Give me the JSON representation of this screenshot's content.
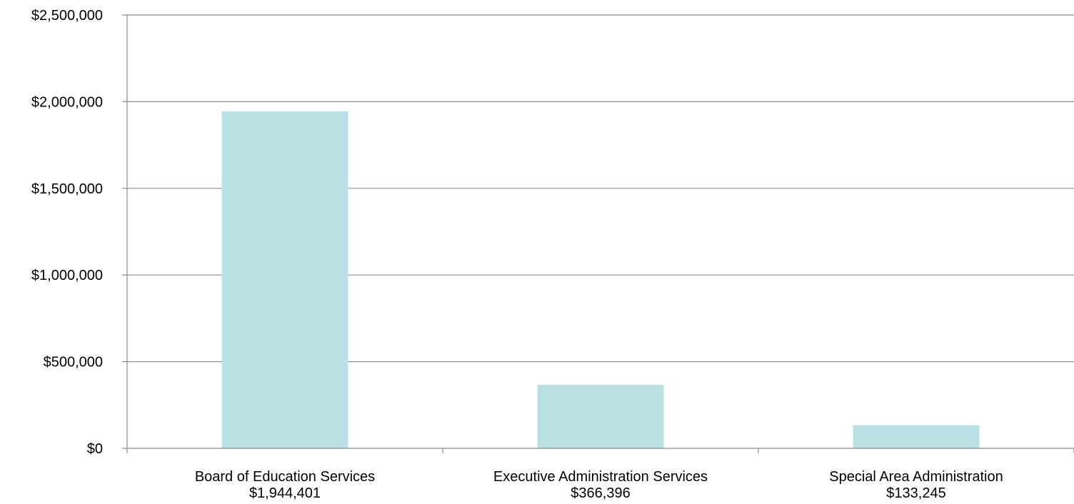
{
  "chart_data": {
    "type": "bar",
    "title": "",
    "xlabel": "",
    "ylabel": "",
    "categories": [
      {
        "name": "Board of Education Services",
        "value_label": "$1,944,401"
      },
      {
        "name": "Executive Administration Services",
        "value_label": "$366,396"
      },
      {
        "name": "Special Area Administration",
        "value_label": "$133,245"
      }
    ],
    "values": [
      1944401,
      366396,
      133245
    ],
    "ylim": [
      0,
      2500000
    ],
    "yticks": [
      0,
      500000,
      1000000,
      1500000,
      2000000,
      2500000
    ],
    "ytick_labels": [
      "$0",
      "$500,000",
      "$1,000,000",
      "$1,500,000",
      "$2,000,000",
      "$2,500,000"
    ],
    "grid": true,
    "legend": "none",
    "colors": {
      "bar": "#b9e0e2",
      "grid": "#8c8c8c",
      "text": "#000000"
    }
  }
}
